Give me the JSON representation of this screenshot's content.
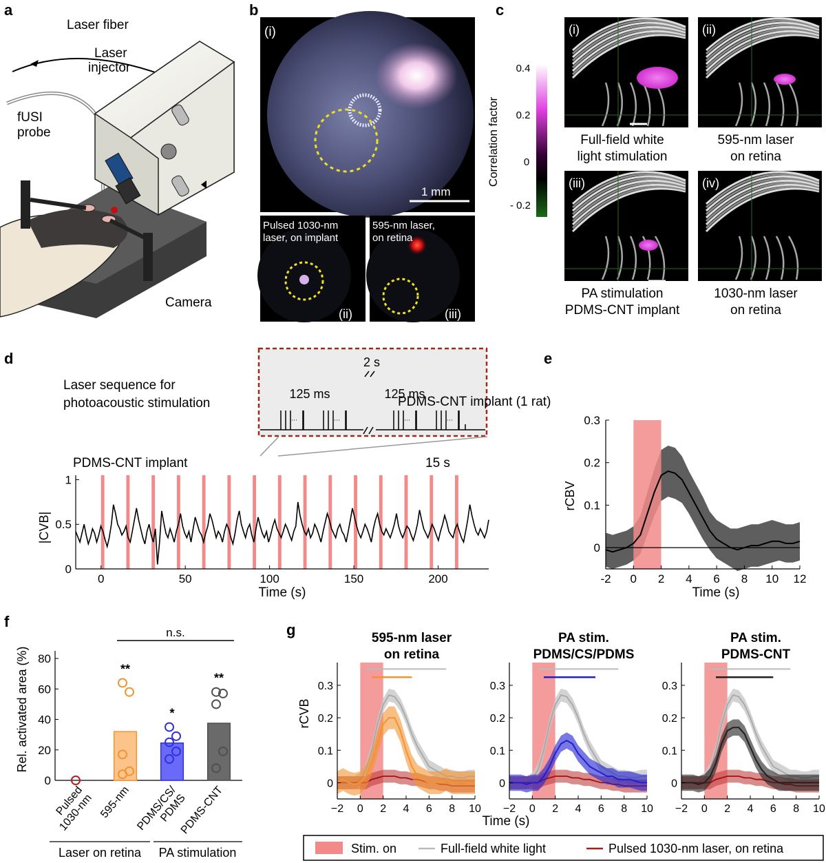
{
  "panel_a": {
    "letter": "a",
    "labels": {
      "laser_fiber": "Laser fiber",
      "laser_injector_1": "Laser",
      "laser_injector_2": "injector",
      "fusi_1": "fUSI",
      "fusi_2": "probe",
      "camera": "Camera"
    }
  },
  "panel_b": {
    "letter": "b",
    "main_tag": "(i)",
    "scale": "1 mm",
    "sub_ii_line1": "Pulsed 1030-nm",
    "sub_ii_line2": "laser, on implant",
    "sub_ii_tag": "(ii)",
    "sub_iii_line1": "595-nm laser,",
    "sub_iii_line2": "on retina",
    "sub_iii_tag": "(iii)"
  },
  "panel_c": {
    "letter": "c",
    "colorbar_label": "Correlation factor",
    "colorbar_ticks": [
      "0.4",
      "0.2",
      "0",
      "- 0.2"
    ],
    "images": [
      {
        "tag": "(i)",
        "cap1": "Full-field white",
        "cap2": "light stimulation"
      },
      {
        "tag": "(ii)",
        "cap1": "595-nm laser",
        "cap2": "on retina"
      },
      {
        "tag": "(iii)",
        "cap1": "PA stimulation",
        "cap2": "PDMS-CNT implant"
      },
      {
        "tag": "(iv)",
        "cap1": "1030-nm laser",
        "cap2": "on retina"
      }
    ]
  },
  "panel_d": {
    "letter": "d",
    "seq_label_1": "Laser sequence for",
    "seq_label_2": "photoacoustic stimulation",
    "inset_2s": "2 s",
    "inset_125a": "125 ms",
    "inset_125b": "125 ms",
    "trace_title": "PDMS-CNT implant",
    "period": "15 s",
    "ylabel": "|CVB|",
    "xlabel": "Time (s)"
  },
  "panel_e": {
    "letter": "e",
    "title": "PDMS-CNT implant (1 rat)"
  },
  "panel_f": {
    "letter": "f",
    "ns": "n.s.",
    "group1": "Laser on retina",
    "group2": "PA stimulation"
  },
  "panel_g": {
    "letter": "g",
    "ylabel": "rCVB",
    "xlabel": "Time (s)"
  },
  "legend": {
    "stim": "Stim. on",
    "white": "Full-field white light",
    "pulsed": "Pulsed 1030-nm laser, on retina"
  },
  "chart_data": [
    {
      "type": "line",
      "id": "d",
      "xlabel": "Time (s)",
      "ylabel": "|CVB|",
      "xlim": [
        -15,
        230
      ],
      "ylim": [
        0,
        1.05
      ],
      "xticks": [
        0,
        50,
        100,
        150,
        200
      ],
      "yticks": [
        0,
        0.5,
        1
      ],
      "stim_onsets": [
        0,
        15,
        30,
        45,
        60,
        75,
        90,
        105,
        120,
        135,
        150,
        165,
        180,
        195,
        210
      ],
      "stim_duration": 2,
      "series": [
        {
          "values": [
            0.42,
            0.36,
            0.3,
            0.4,
            0.5,
            0.38,
            0.28,
            0.35,
            0.45,
            0.4,
            0.3,
            0.38,
            0.48,
            0.42,
            0.33,
            0.25,
            0.35,
            0.5,
            0.72,
            0.62,
            0.5,
            0.45,
            0.38,
            0.42,
            0.48,
            0.35,
            0.3,
            0.42,
            0.55,
            0.68,
            0.55,
            0.45,
            0.35,
            0.28,
            0.42,
            0.5,
            0.38,
            0.3,
            0.45,
            0.05,
            0.3,
            0.65,
            0.52,
            0.4,
            0.35,
            0.45,
            0.38,
            0.3,
            0.42,
            0.5,
            0.62,
            0.48,
            0.4,
            0.35,
            0.42,
            0.3,
            0.45,
            0.58,
            0.5,
            0.42,
            0.38,
            0.3,
            0.4,
            0.48,
            0.62,
            0.55,
            0.45,
            0.35,
            0.42,
            0.38,
            0.3,
            0.42,
            0.5,
            0.45,
            0.35,
            0.28,
            0.4,
            0.55,
            0.65,
            0.5,
            0.42,
            0.35,
            0.45,
            0.5,
            0.38,
            0.3,
            0.45,
            0.58,
            0.48,
            0.4,
            0.35,
            0.42,
            0.3,
            0.38,
            0.48,
            0.55,
            0.45,
            0.4,
            0.35,
            0.42,
            0.5,
            0.45,
            0.38,
            0.32,
            0.42,
            0.48,
            0.75,
            0.6,
            0.5,
            0.42,
            0.38,
            0.45,
            0.35,
            0.4,
            0.5,
            0.45,
            0.38,
            0.3,
            0.42,
            0.52,
            0.62,
            0.55,
            0.45,
            0.4,
            0.35,
            0.45,
            0.5,
            0.42,
            0.38,
            0.3,
            0.42,
            0.55,
            0.68,
            0.58,
            0.48,
            0.4,
            0.35,
            0.42,
            0.5,
            0.45,
            0.38,
            0.3,
            0.45,
            0.55,
            0.62,
            0.5,
            0.42,
            0.38,
            0.45,
            0.4,
            0.35,
            0.42,
            0.5,
            0.62,
            0.48,
            0.4,
            0.35,
            0.42,
            0.48,
            0.45,
            0.38,
            0.32,
            0.4,
            0.5,
            0.66,
            0.55,
            0.45,
            0.4,
            0.35,
            0.42,
            0.5,
            0.45,
            0.38,
            0.32,
            0.42,
            0.5,
            0.6,
            0.52,
            0.42,
            0.38,
            0.35,
            0.45,
            0.5,
            0.42,
            0.35,
            0.3,
            0.42,
            0.55,
            0.72,
            0.6,
            0.5,
            0.42,
            0.38,
            0.45,
            0.4,
            0.35,
            0.42,
            0.55
          ]
        }
      ]
    },
    {
      "type": "line",
      "id": "e",
      "title": "PDMS-CNT implant (1 rat)",
      "xlabel": "Time (s)",
      "ylabel": "rCBV",
      "xlim": [
        -2,
        12
      ],
      "ylim": [
        -0.05,
        0.3
      ],
      "xticks": [
        -2,
        0,
        2,
        4,
        6,
        8,
        10,
        12
      ],
      "yticks": [
        0,
        0.1,
        0.2,
        0.3
      ],
      "stim": [
        0,
        2
      ],
      "x": [
        -2,
        -1.5,
        -1,
        -0.5,
        0,
        0.5,
        1,
        1.5,
        2,
        2.5,
        3,
        3.5,
        4,
        4.5,
        5,
        5.5,
        6,
        6.5,
        7,
        7.5,
        8,
        8.5,
        9,
        9.5,
        10,
        10.5,
        11,
        11.5,
        12
      ],
      "series": [
        {
          "mean": [
            -0.005,
            -0.01,
            -0.005,
            0.0,
            0.01,
            0.03,
            0.08,
            0.13,
            0.17,
            0.18,
            0.175,
            0.16,
            0.13,
            0.1,
            0.07,
            0.04,
            0.02,
            0.01,
            0.0,
            -0.005,
            0.0,
            0.005,
            0.005,
            0.01,
            0.015,
            0.015,
            0.01,
            0.01,
            0.015
          ],
          "band": [
            0.04,
            0.04,
            0.04,
            0.04,
            0.04,
            0.045,
            0.05,
            0.055,
            0.06,
            0.06,
            0.06,
            0.055,
            0.05,
            0.05,
            0.05,
            0.045,
            0.045,
            0.045,
            0.045,
            0.05,
            0.05,
            0.05,
            0.05,
            0.05,
            0.05,
            0.045,
            0.045,
            0.045,
            0.045
          ]
        }
      ]
    },
    {
      "type": "bar",
      "id": "f",
      "ylabel": "Rel. activated area (%)",
      "ylim": [
        0,
        85
      ],
      "yticks": [
        0,
        20,
        40,
        60,
        80
      ],
      "categories": [
        "Pulsed 1030-nm",
        "595-nm",
        "PDMS/CS/ PDMS",
        "PDMS-CNT"
      ],
      "values": [
        0,
        32,
        24.5,
        37.5
      ],
      "points": [
        [
          0
        ],
        [
          4,
          6,
          17,
          58,
          64
        ],
        [
          14,
          19,
          25,
          29,
          35
        ],
        [
          8,
          19,
          50,
          57,
          58
        ]
      ],
      "significance": [
        "",
        "**",
        "*",
        "**"
      ],
      "colors": [
        "#b02020",
        "#f29430",
        "#3030e0",
        "#505050"
      ]
    },
    {
      "type": "line",
      "id": "g",
      "xlabel": "Time (s)",
      "ylabel": "rCVB",
      "xlim": [
        -2,
        10
      ],
      "ylim": [
        -0.05,
        0.37
      ],
      "xticks": [
        -2,
        0,
        2,
        4,
        6,
        8,
        10
      ],
      "yticks": [
        0,
        0.1,
        0.2,
        0.3
      ],
      "stim": [
        0,
        2
      ],
      "x": [
        -2,
        -1.5,
        -1,
        -0.5,
        0,
        0.5,
        1,
        1.5,
        2,
        2.5,
        3,
        3.5,
        4,
        4.5,
        5,
        5.5,
        6,
        6.5,
        7,
        7.5,
        8,
        8.5,
        9,
        9.5,
        10
      ],
      "white_light": {
        "mean": [
          0.0,
          0.0,
          0.0,
          0.0,
          0.01,
          0.04,
          0.1,
          0.18,
          0.24,
          0.27,
          0.265,
          0.24,
          0.2,
          0.15,
          0.11,
          0.08,
          0.05,
          0.04,
          0.03,
          0.02,
          0.02,
          0.015,
          0.015,
          0.02,
          0.02
        ],
        "band": 0.02
      },
      "pulsed_1030": {
        "mean": [
          0.0,
          0.0,
          0.0,
          0.0,
          0.0,
          0.0,
          0.01,
          0.015,
          0.02,
          0.02,
          0.02,
          0.015,
          0.015,
          0.01,
          0.01,
          0.005,
          0.0,
          0.0,
          -0.005,
          -0.005,
          -0.01,
          -0.01,
          -0.01,
          -0.01,
          -0.01
        ],
        "band": 0.02
      },
      "subplots": [
        {
          "title1": "595-nm laser",
          "title2": "on retina",
          "color": "#f29430",
          "mean": [
            0.0,
            0.01,
            0.0,
            -0.005,
            0.0,
            0.02,
            0.06,
            0.12,
            0.18,
            0.2,
            0.2,
            0.16,
            0.1,
            0.05,
            0.02,
            0.01,
            0.0,
            0.0,
            0.0,
            0.01,
            0.0,
            0.0,
            0.0,
            0.0,
            0.0
          ],
          "band": 0.035,
          "sig": [
            1,
            4.5
          ]
        },
        {
          "title1": "PA stim.",
          "title2": "PDMS/CS/PDMS",
          "color": "#2020d0",
          "mean": [
            0.0,
            0.0,
            0.0,
            -0.005,
            0.0,
            0.0,
            0.02,
            0.05,
            0.09,
            0.12,
            0.13,
            0.12,
            0.09,
            0.07,
            0.05,
            0.04,
            0.03,
            0.02,
            0.02,
            0.01,
            0.01,
            0.01,
            0.005,
            0.0,
            0.0
          ],
          "band": 0.025,
          "sig": [
            1,
            5.5
          ]
        },
        {
          "title1": "PA stim.",
          "title2": "PDMS-CNT",
          "color": "#202020",
          "mean": [
            0.0,
            0.0,
            0.0,
            -0.005,
            0.0,
            0.02,
            0.06,
            0.12,
            0.16,
            0.17,
            0.17,
            0.15,
            0.11,
            0.07,
            0.04,
            0.02,
            0.01,
            0.0,
            0.0,
            0.0,
            0.0,
            0.0,
            0.0,
            0.0,
            0.0
          ],
          "band": 0.025,
          "sig": [
            1,
            6
          ]
        }
      ]
    }
  ]
}
